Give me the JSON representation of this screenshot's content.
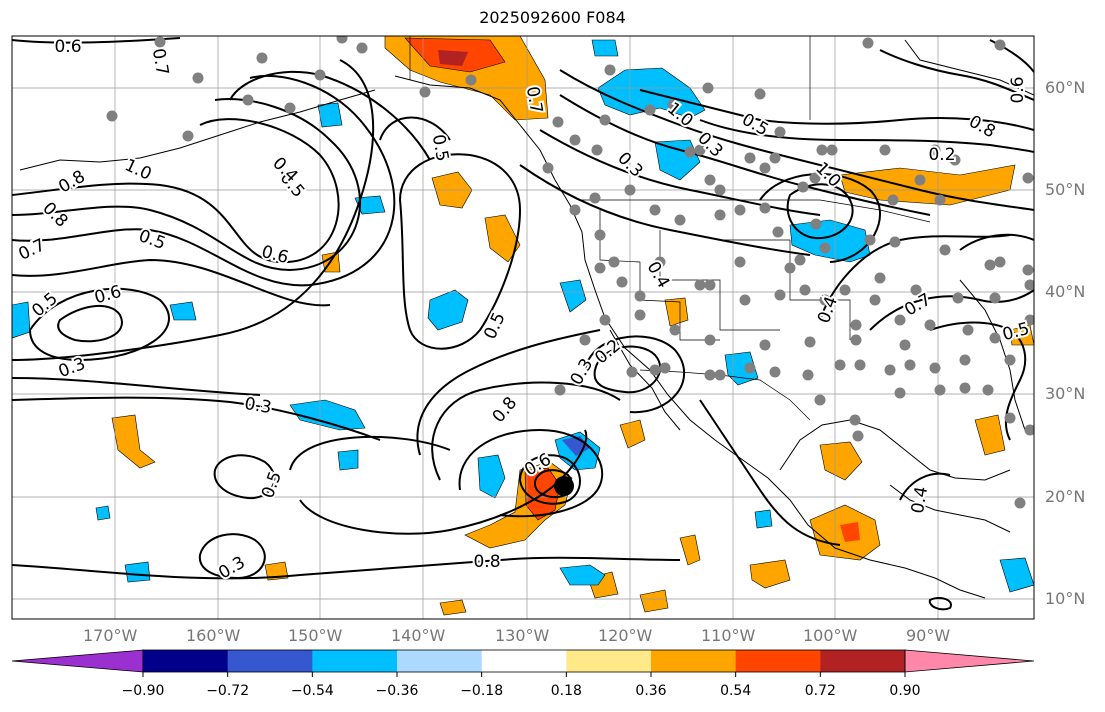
{
  "title": "2025092600 F084",
  "lon_ticks": [
    "170°W",
    "160°W",
    "150°W",
    "140°W",
    "130°W",
    "120°W",
    "110°W",
    "100°W",
    "90°W"
  ],
  "lat_ticks": [
    "60°N",
    "50°N",
    "40°N",
    "30°N",
    "20°N",
    "10°N"
  ],
  "contour_labels": [
    "0.6",
    "0.7",
    "0.8",
    "1.0",
    "0.8",
    "0.7",
    "0.5",
    "0.6",
    "0.5",
    "0.4",
    "0.6",
    "0.5",
    "0.3",
    "0.3",
    "0.3",
    "0.5",
    "0.5",
    "0.6",
    "0.8",
    "0.3",
    "0.2",
    "0.5",
    "0.8",
    "0.7",
    "1.0",
    "0.3",
    "0.5",
    "0.4",
    "1.0",
    "0.2",
    "0.4",
    "0.7",
    "0.5",
    "0.8",
    "0.3",
    "0.6",
    "0.4"
  ],
  "colorbar": {
    "colors": [
      "#9b30d0",
      "#00008b",
      "#3557cf",
      "#00bfff",
      "#add8ff",
      "#ffffff",
      "#ffe989",
      "#ffa500",
      "#ff4500",
      "#b22222",
      "#ff88aa"
    ],
    "tick_labels": [
      "−0.90",
      "−0.72",
      "−0.54",
      "−0.36",
      "−0.18",
      "0.18",
      "0.36",
      "0.54",
      "0.72",
      "0.90"
    ]
  },
  "colors": {
    "positive_mid": "#ffa500",
    "positive_high": "#ff4500",
    "negative_mid": "#00bfff",
    "negative_high": "#3557cf",
    "station": "#808080",
    "storm": "#000000"
  }
}
